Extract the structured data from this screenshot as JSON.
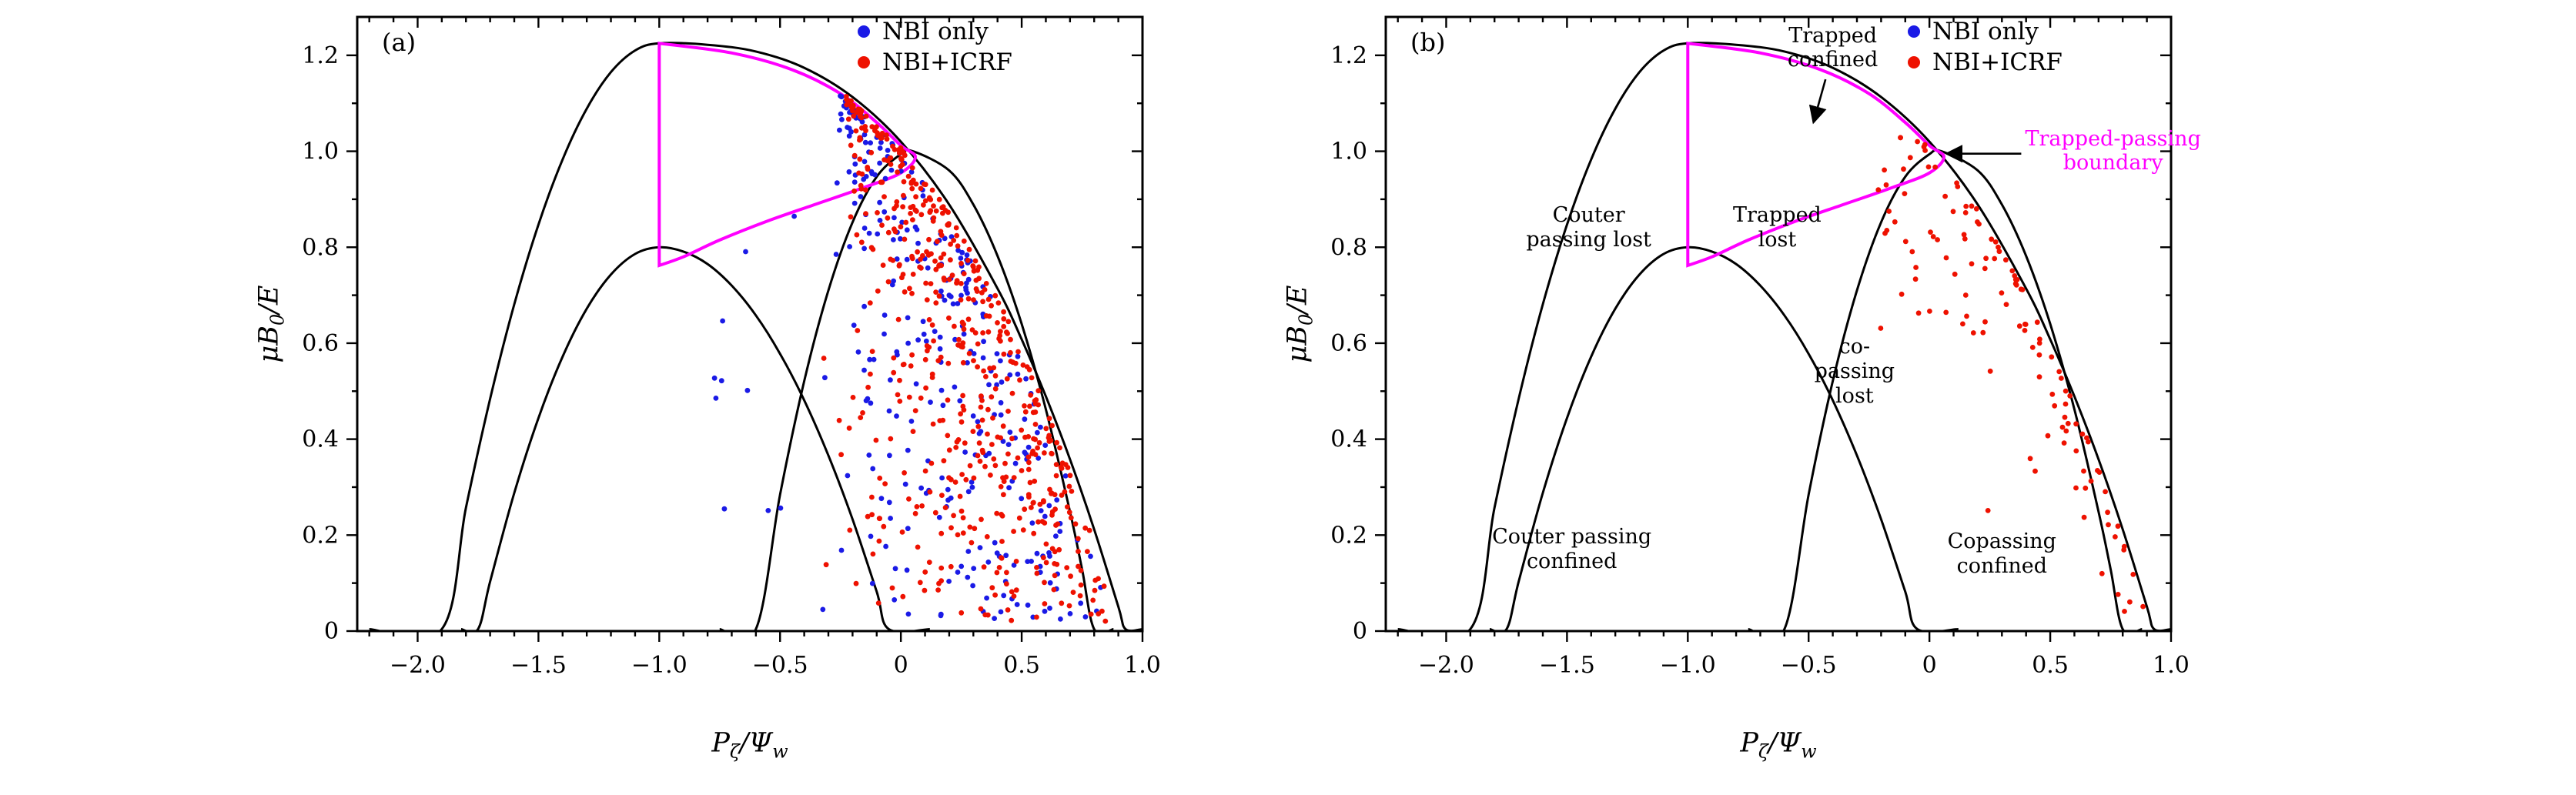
{
  "figure": {
    "background": "#ffffff"
  },
  "axes": {
    "x_range": [
      -2.25,
      1.0
    ],
    "y_range": [
      0,
      1.28
    ],
    "x_ticks": [
      {
        "v": -2.0,
        "label": "−2.0"
      },
      {
        "v": -1.5,
        "label": "−1.5"
      },
      {
        "v": -1.0,
        "label": "−1.0"
      },
      {
        "v": -0.5,
        "label": "−0.5"
      },
      {
        "v": 0.0,
        "label": "0"
      },
      {
        "v": 0.5,
        "label": "0.5"
      },
      {
        "v": 1.0,
        "label": "1.0"
      }
    ],
    "y_ticks": [
      {
        "v": 0.0,
        "label": "0"
      },
      {
        "v": 0.2,
        "label": "0.2"
      },
      {
        "v": 0.4,
        "label": "0.4"
      },
      {
        "v": 0.6,
        "label": "0.6"
      },
      {
        "v": 0.8,
        "label": "0.8"
      },
      {
        "v": 1.0,
        "label": "1.0"
      },
      {
        "v": 1.2,
        "label": "1.2"
      }
    ],
    "x_minor_step": 0.1,
    "y_minor_step": 0.1,
    "x_title_parts": {
      "sym": "P",
      "sym_sub": "ζ",
      "slash": "/",
      "den": "Ψ",
      "den_sub": "w"
    },
    "y_title_parts": {
      "num": "μB",
      "num_sub": "0",
      "slash": "/",
      "den": "E"
    }
  },
  "chart_data": {
    "type": "scatter",
    "xlabel": "P_ζ/Ψ_w",
    "ylabel": "μB_0/E",
    "marker_radius": 3.4,
    "curves": [
      {
        "name": "outer-boundary",
        "color": "#000000",
        "width": 3,
        "closed": false,
        "points": [
          [
            -2.2,
            0.004
          ],
          [
            -1.9,
            0.004
          ],
          [
            -1.8,
            0.257
          ],
          [
            -1.7,
            0.484
          ],
          [
            -1.6,
            0.681
          ],
          [
            -1.5,
            0.847
          ],
          [
            -1.4,
            0.983
          ],
          [
            -1.3,
            1.089
          ],
          [
            -1.2,
            1.165
          ],
          [
            -1.1,
            1.21
          ],
          [
            -1.0,
            1.225
          ],
          [
            -0.8,
            1.222
          ],
          [
            -0.6,
            1.208
          ],
          [
            -0.4,
            1.174
          ],
          [
            -0.2,
            1.113
          ],
          [
            0,
            1.02
          ],
          [
            0.2,
            0.889
          ],
          [
            0.4,
            0.714
          ],
          [
            0.5,
            0.608
          ],
          [
            0.6,
            0.489
          ],
          [
            0.7,
            0.358
          ],
          [
            0.8,
            0.212
          ],
          [
            0.9,
            0.051
          ],
          [
            0.93,
            0.004
          ],
          [
            1.0,
            0.004
          ]
        ]
      },
      {
        "name": "inner-left-dome",
        "color": "#000000",
        "width": 3,
        "closed": false,
        "points": [
          [
            -1.82,
            0.004
          ],
          [
            -1.75,
            0.004
          ],
          [
            -1.7,
            0.103
          ],
          [
            -1.6,
            0.288
          ],
          [
            -1.5,
            0.444
          ],
          [
            -1.4,
            0.572
          ],
          [
            -1.3,
            0.672
          ],
          [
            -1.2,
            0.743
          ],
          [
            -1.1,
            0.786
          ],
          [
            -1.0,
            0.8
          ],
          [
            -0.9,
            0.791
          ],
          [
            -0.8,
            0.765
          ],
          [
            -0.7,
            0.72
          ],
          [
            -0.6,
            0.658
          ],
          [
            -0.5,
            0.578
          ],
          [
            -0.4,
            0.481
          ],
          [
            -0.3,
            0.366
          ],
          [
            -0.2,
            0.233
          ],
          [
            -0.1,
            0.082
          ],
          [
            -0.05,
            0.004
          ],
          [
            0.12,
            0.004
          ]
        ]
      },
      {
        "name": "right-dome",
        "color": "#000000",
        "width": 3,
        "closed": false,
        "points": [
          [
            -0.75,
            0.004
          ],
          [
            -0.6,
            0.004
          ],
          [
            -0.5,
            0.284
          ],
          [
            -0.4,
            0.521
          ],
          [
            -0.3,
            0.71
          ],
          [
            -0.2,
            0.852
          ],
          [
            -0.1,
            0.947
          ],
          [
            0,
            0.994
          ],
          [
            0.05,
            1.0
          ],
          [
            0.2,
            0.96
          ],
          [
            0.3,
            0.889
          ],
          [
            0.4,
            0.782
          ],
          [
            0.5,
            0.64
          ],
          [
            0.6,
            0.462
          ],
          [
            0.7,
            0.249
          ],
          [
            0.75,
            0.129
          ],
          [
            0.8,
            0.004
          ],
          [
            0.88,
            0.004
          ]
        ]
      },
      {
        "name": "trapped-passing-boundary",
        "color": "#ff00ff",
        "width": 4,
        "closed": true,
        "points": [
          [
            -1.0,
            1.225
          ],
          [
            -0.7,
            1.205
          ],
          [
            -0.45,
            1.17
          ],
          [
            -0.25,
            1.12
          ],
          [
            -0.1,
            1.06
          ],
          [
            0.0,
            1.012
          ],
          [
            0.06,
            0.988
          ],
          [
            0.0,
            0.955
          ],
          [
            -0.15,
            0.925
          ],
          [
            -0.35,
            0.89
          ],
          [
            -0.55,
            0.855
          ],
          [
            -0.75,
            0.815
          ],
          [
            -0.9,
            0.78
          ],
          [
            -1.0,
            0.762
          ]
        ]
      }
    ],
    "boundary_right": [
      [
        -1.0,
        1.225
      ],
      [
        -0.8,
        1.222
      ],
      [
        -0.6,
        1.208
      ],
      [
        -0.4,
        1.174
      ],
      [
        -0.2,
        1.113
      ],
      [
        0,
        1.02
      ],
      [
        0.2,
        0.889
      ],
      [
        0.4,
        0.714
      ],
      [
        0.5,
        0.608
      ],
      [
        0.6,
        0.489
      ],
      [
        0.7,
        0.358
      ],
      [
        0.8,
        0.212
      ],
      [
        0.9,
        0.051
      ],
      [
        0.93,
        0
      ]
    ],
    "panels": [
      {
        "label": "(a)",
        "legend": [
          {
            "label": "NBI only",
            "color": "#1a1ae6"
          },
          {
            "label": "NBI+ICRF",
            "color": "#ee1100"
          }
        ],
        "series": [
          {
            "name": "NBI only",
            "color": "#1a1ae6",
            "seed": 1234,
            "clusters": [
              {
                "type": "band",
                "count": 300,
                "y": [
                  0.02,
                  1.12
                ],
                "left": {
                  "x0": -0.5,
                  "slope": 0.22
                },
                "margin": 0.04,
                "bias": 0.5
              },
              {
                "type": "box",
                "count": 10,
                "x": [
                  -0.78,
                  -0.42
                ],
                "y": [
                  0.15,
                  0.9
                ],
                "clip": 0.05
              }
            ]
          },
          {
            "name": "NBI+ICRF",
            "color": "#ee1100",
            "seed": 4321,
            "clusters": [
              {
                "type": "band",
                "count": 500,
                "y": [
                  0.02,
                  1.15
                ],
                "left": {
                  "x0": -0.45,
                  "slope": 0.2
                },
                "margin": 0.022,
                "bias": 0.45
              },
              {
                "type": "hug",
                "count": 60,
                "y": [
                  0.2,
                  1.02
                ],
                "offset": 0.02,
                "spread": 0.07,
                "pow": 2
              }
            ]
          }
        ],
        "annotations": [],
        "arrows": []
      },
      {
        "label": "(b)",
        "legend": [
          {
            "label": "NBI only",
            "color": "#1a1ae6"
          },
          {
            "label": "NBI+ICRF",
            "color": "#ee1100"
          }
        ],
        "series": [
          {
            "name": "NBI+ICRF",
            "color": "#ee1100",
            "seed": 99,
            "clusters": [
              {
                "type": "hug",
                "count": 80,
                "y": [
                  0.04,
                  1.03
                ],
                "offset": 0.015,
                "spread": 0.13,
                "pow": 2.2
              },
              {
                "type": "box",
                "count": 36,
                "x": [
                  -0.22,
                  0.5
                ],
                "y": [
                  0.6,
                  1.02
                ],
                "clip": 0.03
              },
              {
                "type": "box",
                "count": 6,
                "x": [
                  0.15,
                  0.55
                ],
                "y": [
                  0.25,
                  0.58
                ],
                "clip": 0.06
              }
            ]
          }
        ],
        "annotations": [
          {
            "name": "trapped-confined",
            "color": "#000000",
            "x": -0.4,
            "y": 1.215,
            "lines": [
              "Trapped",
              "confined"
            ]
          },
          {
            "name": "trapped-passing-boundary-label",
            "color": "#ff00ff",
            "x": 0.76,
            "y": 1.0,
            "lines": [
              "Trapped-passing",
              "boundary"
            ]
          },
          {
            "name": "counter-passing-lost",
            "color": "#000000",
            "x": -1.41,
            "y": 0.84,
            "lines": [
              "Couter",
              "passing lost"
            ]
          },
          {
            "name": "trapped-lost",
            "color": "#000000",
            "x": -0.63,
            "y": 0.84,
            "lines": [
              "Trapped",
              "lost"
            ]
          },
          {
            "name": "co-passing-lost",
            "color": "#000000",
            "x": -0.31,
            "y": 0.54,
            "lines": [
              "co-",
              "passing",
              "lost"
            ]
          },
          {
            "name": "counter-passing-confined",
            "color": "#000000",
            "x": -1.48,
            "y": 0.17,
            "lines": [
              "Couter passing",
              "confined"
            ]
          },
          {
            "name": "copassing-confined",
            "color": "#000000",
            "x": 0.3,
            "y": 0.16,
            "lines": [
              "Copassing",
              "confined"
            ]
          }
        ],
        "arrows": [
          {
            "from": [
              -0.43,
              1.15
            ],
            "to": [
              -0.48,
              1.06
            ]
          },
          {
            "from": [
              0.38,
              0.995
            ],
            "to": [
              0.07,
              0.995
            ]
          }
        ]
      }
    ]
  }
}
